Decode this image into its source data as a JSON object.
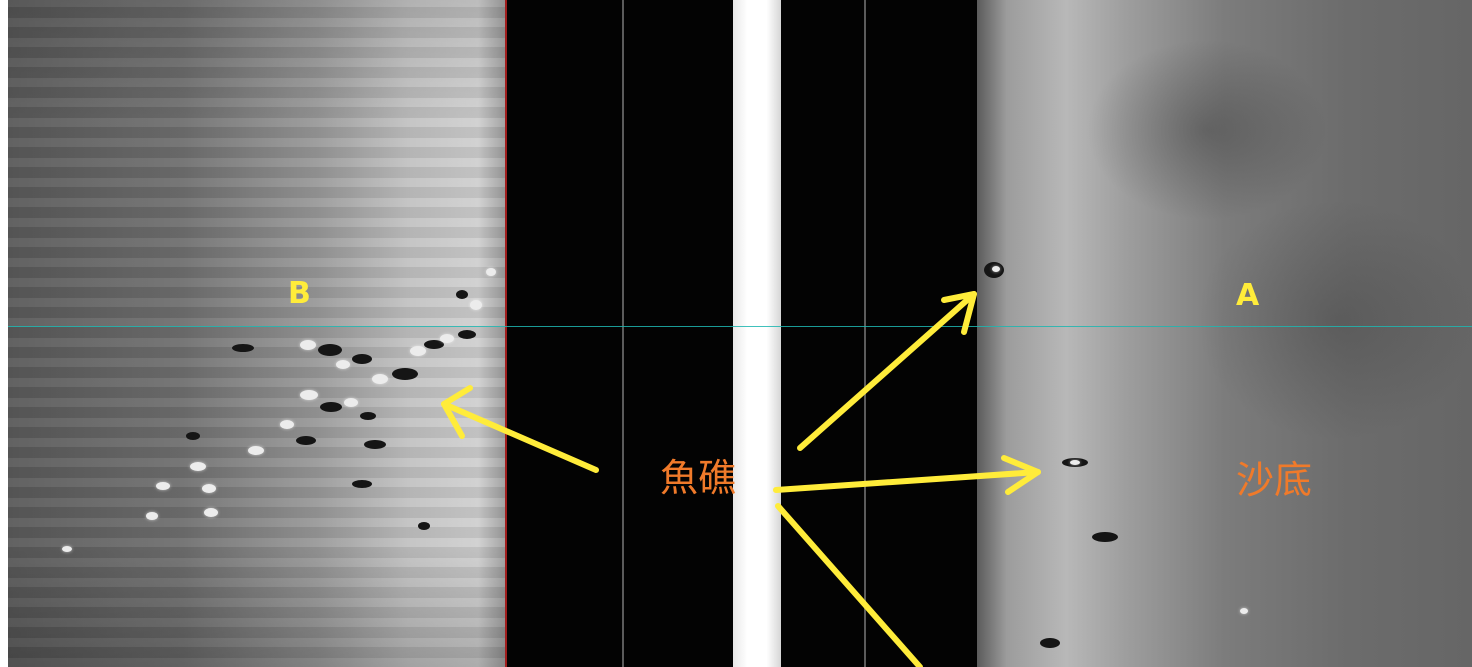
{
  "labels": {
    "left_point": "B",
    "right_point": "A",
    "reef": "魚礁",
    "sand_bottom": "沙底"
  },
  "colors": {
    "annotation_yellow": "#ffec3a",
    "annotation_orange": "#f07a2a",
    "cursor_line": "#1fb6b0",
    "water_column": "#030303"
  }
}
